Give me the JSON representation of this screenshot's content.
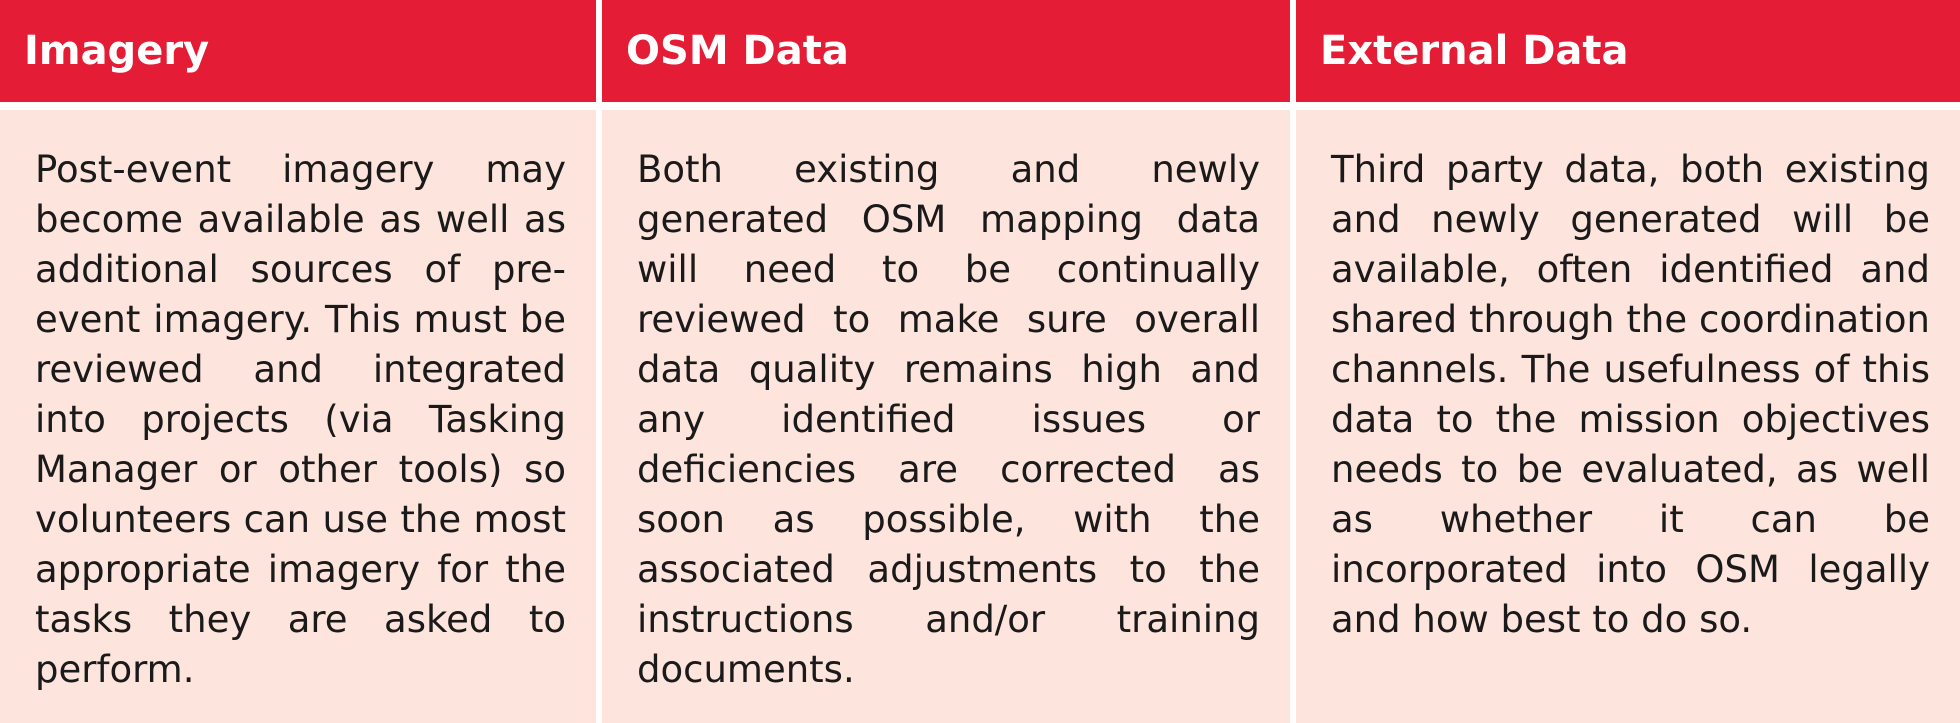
{
  "columns": [
    {
      "header": "Imagery",
      "body": "Post-event imagery may become available as well as additional sources of pre-event imagery. This must be reviewed and integrated into projects (via Tasking Manager or other tools) so volunteers can use the most appropriate imagery for the tasks they are asked to perform."
    },
    {
      "header": "OSM Data",
      "body": "Both existing and newly generated OSM mapping data will need to be continually reviewed to make sure overall data quality remains high and any identified issues or deficiencies are corrected as soon as possible, with the associated adjustments to the instructions and/or training documents."
    },
    {
      "header": "External Data",
      "body": "Third party data, both existing and newly generated will be available, often identified and shared through the coordination channels. The usefulness of this data to the mission objectives needs to be evaluated, as well as whether it can be incorporated into OSM legally and how best to do so."
    }
  ],
  "colors": {
    "header_bg": "#e51c35",
    "header_text": "#ffffff",
    "body_bg": "#fde4dc",
    "body_text": "#1a1a1a"
  }
}
